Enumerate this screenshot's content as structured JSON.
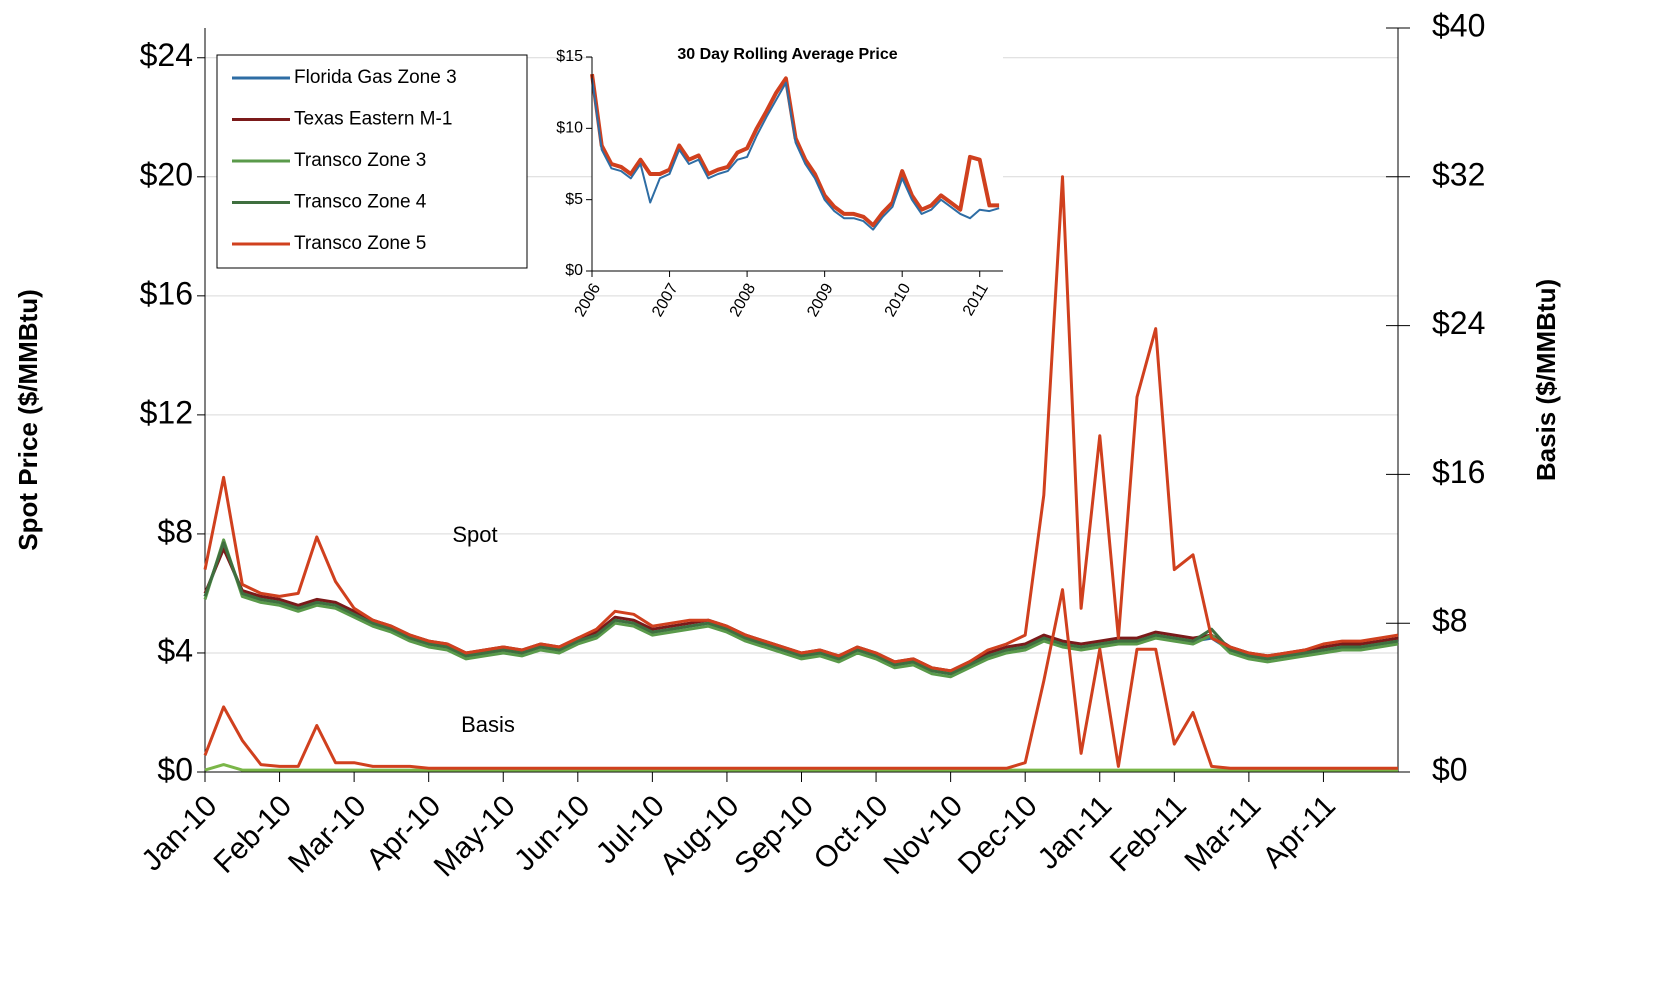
{
  "chart_data": [
    {
      "type": "line",
      "y_label": "Spot Price ($/MMBtu)",
      "y2_label": "Basis ($/MMBtu)",
      "annotations": [
        "Spot",
        "Basis"
      ],
      "legend": "upper left",
      "grid": true,
      "x": [
        0,
        0.25,
        0.5,
        0.75,
        1,
        1.25,
        1.5,
        1.75,
        2,
        2.25,
        2.5,
        2.75,
        3,
        3.25,
        3.5,
        3.75,
        4,
        4.25,
        4.5,
        4.75,
        5,
        5.25,
        5.5,
        5.75,
        6,
        6.25,
        6.5,
        6.75,
        7,
        7.25,
        7.5,
        7.75,
        8,
        8.25,
        8.5,
        8.75,
        9,
        9.25,
        9.5,
        9.75,
        10,
        10.25,
        10.5,
        10.75,
        11,
        11.25,
        11.5,
        11.75,
        12,
        12.25,
        12.5,
        12.75,
        13,
        13.25,
        13.5,
        13.75,
        14,
        14.25,
        14.5,
        14.75,
        15,
        15.25,
        15.5,
        15.75,
        16
      ],
      "xlim": [
        0,
        16
      ],
      "xticks": [
        {
          "value": 0,
          "label": "Jan-10"
        },
        {
          "value": 1,
          "label": "Feb-10"
        },
        {
          "value": 2,
          "label": "Mar-10"
        },
        {
          "value": 3,
          "label": "Apr-10"
        },
        {
          "value": 4,
          "label": "May-10"
        },
        {
          "value": 5,
          "label": "Jun-10"
        },
        {
          "value": 6,
          "label": "Jul-10"
        },
        {
          "value": 7,
          "label": "Aug-10"
        },
        {
          "value": 8,
          "label": "Sep-10"
        },
        {
          "value": 9,
          "label": "Oct-10"
        },
        {
          "value": 10,
          "label": "Nov-10"
        },
        {
          "value": 11,
          "label": "Dec-10"
        },
        {
          "value": 12,
          "label": "Jan-11"
        },
        {
          "value": 13,
          "label": "Feb-11"
        },
        {
          "value": 14,
          "label": "Mar-11"
        },
        {
          "value": 15,
          "label": "Apr-11"
        }
      ],
      "ylim": [
        0,
        25
      ],
      "yticks": [
        {
          "value": 0,
          "label": "$0"
        },
        {
          "value": 4,
          "label": "$4"
        },
        {
          "value": 8,
          "label": "$8"
        },
        {
          "value": 12,
          "label": "$12"
        },
        {
          "value": 16,
          "label": "$16"
        },
        {
          "value": 20,
          "label": "$20"
        },
        {
          "value": 24,
          "label": "$24"
        }
      ],
      "y2lim": [
        0,
        40
      ],
      "y2ticks": [
        {
          "value": 0,
          "label": "$0"
        },
        {
          "value": 8,
          "label": "$8"
        },
        {
          "value": 16,
          "label": "$16"
        },
        {
          "value": 24,
          "label": "$24"
        },
        {
          "value": 32,
          "label": "$32"
        },
        {
          "value": 40,
          "label": "$40"
        }
      ],
      "series": [
        {
          "name": "Florida Gas Zone 3",
          "color": "#2e6da4",
          "values": [
            5.9,
            7.6,
            6.0,
            5.8,
            5.7,
            5.5,
            5.7,
            5.6,
            5.3,
            5.0,
            4.8,
            4.5,
            4.3,
            4.2,
            3.9,
            4.0,
            4.1,
            4.0,
            4.2,
            4.1,
            4.4,
            4.6,
            5.1,
            5.0,
            4.7,
            4.8,
            4.9,
            5.0,
            4.8,
            4.5,
            4.3,
            4.1,
            3.9,
            4.0,
            3.8,
            4.1,
            3.9,
            3.6,
            3.7,
            3.4,
            3.3,
            3.6,
            3.9,
            4.1,
            4.2,
            4.5,
            4.3,
            4.2,
            4.3,
            4.4,
            4.4,
            4.6,
            4.5,
            4.4,
            4.5,
            4.1,
            3.9,
            3.8,
            3.9,
            4.0,
            4.1,
            4.2,
            4.2,
            4.3,
            4.4
          ]
        },
        {
          "name": "Texas Eastern M-1",
          "color": "#7b1a1a",
          "values": [
            6.0,
            7.5,
            6.1,
            5.9,
            5.8,
            5.6,
            5.8,
            5.7,
            5.4,
            5.1,
            4.9,
            4.6,
            4.4,
            4.3,
            4.0,
            4.1,
            4.2,
            4.1,
            4.3,
            4.2,
            4.5,
            4.7,
            5.2,
            5.1,
            4.8,
            4.9,
            5.0,
            5.1,
            4.9,
            4.6,
            4.4,
            4.2,
            4.0,
            4.1,
            3.9,
            4.2,
            4.0,
            3.7,
            3.8,
            3.5,
            3.4,
            3.7,
            4.0,
            4.2,
            4.3,
            4.6,
            4.4,
            4.3,
            4.4,
            4.5,
            4.5,
            4.7,
            4.6,
            4.5,
            4.6,
            4.2,
            4.0,
            3.9,
            4.0,
            4.1,
            4.2,
            4.3,
            4.3,
            4.4,
            4.5
          ]
        },
        {
          "name": "Transco Zone 3",
          "color": "#5a9a4a",
          "values": [
            5.8,
            7.8,
            5.9,
            5.7,
            5.6,
            5.4,
            5.6,
            5.5,
            5.2,
            4.9,
            4.7,
            4.4,
            4.2,
            4.1,
            3.8,
            3.9,
            4.0,
            3.9,
            4.1,
            4.0,
            4.3,
            4.5,
            5.0,
            4.9,
            4.6,
            4.7,
            4.8,
            4.9,
            4.7,
            4.4,
            4.2,
            4.0,
            3.8,
            3.9,
            3.7,
            4.0,
            3.8,
            3.5,
            3.6,
            3.3,
            3.2,
            3.5,
            3.8,
            4.0,
            4.1,
            4.4,
            4.2,
            4.1,
            4.2,
            4.3,
            4.3,
            4.5,
            4.4,
            4.3,
            4.6,
            4.0,
            3.8,
            3.7,
            3.8,
            3.9,
            4.0,
            4.1,
            4.1,
            4.2,
            4.3
          ]
        },
        {
          "name": "Transco Zone 4",
          "color": "#3f6f3f",
          "values": [
            5.9,
            7.7,
            6.0,
            5.8,
            5.7,
            5.5,
            5.7,
            5.6,
            5.3,
            5.0,
            4.8,
            4.5,
            4.3,
            4.2,
            3.9,
            4.0,
            4.1,
            4.0,
            4.2,
            4.1,
            4.4,
            4.6,
            5.1,
            5.0,
            4.7,
            4.8,
            4.9,
            5.0,
            4.8,
            4.5,
            4.3,
            4.1,
            3.9,
            4.0,
            3.8,
            4.1,
            3.9,
            3.6,
            3.7,
            3.4,
            3.3,
            3.6,
            3.9,
            4.1,
            4.2,
            4.5,
            4.3,
            4.2,
            4.3,
            4.4,
            4.4,
            4.6,
            4.5,
            4.4,
            4.8,
            4.1,
            3.9,
            3.8,
            3.9,
            4.0,
            4.1,
            4.2,
            4.2,
            4.3,
            4.4
          ]
        },
        {
          "name": "Transco Zone 5",
          "color": "#d0401e",
          "values": [
            6.8,
            9.9,
            6.3,
            6.0,
            5.9,
            6.0,
            7.9,
            6.4,
            5.5,
            5.1,
            4.9,
            4.6,
            4.4,
            4.3,
            4.0,
            4.1,
            4.2,
            4.1,
            4.3,
            4.2,
            4.5,
            4.8,
            5.4,
            5.3,
            4.9,
            5.0,
            5.1,
            5.1,
            4.9,
            4.6,
            4.4,
            4.2,
            4.0,
            4.1,
            3.9,
            4.2,
            4.0,
            3.7,
            3.8,
            3.5,
            3.4,
            3.7,
            4.1,
            4.3,
            4.6,
            9.3,
            20.0,
            5.5,
            11.3,
            4.5,
            12.6,
            14.9,
            6.8,
            7.3,
            4.5,
            4.2,
            4.0,
            3.9,
            4.0,
            4.1,
            4.3,
            4.4,
            4.4,
            4.5,
            4.6
          ]
        }
      ],
      "basis_series": [
        {
          "axis": "y2",
          "color": "#7ab648",
          "values": [
            0.1,
            0.4,
            0.1,
            0.1,
            0.1,
            0.1,
            0.1,
            0.1,
            0.1,
            0.1,
            0.1,
            0.1,
            0.1,
            0.1,
            0.1,
            0.1,
            0.1,
            0.1,
            0.1,
            0.1,
            0.1,
            0.1,
            0.1,
            0.1,
            0.1,
            0.1,
            0.1,
            0.1,
            0.1,
            0.1,
            0.1,
            0.1,
            0.1,
            0.1,
            0.1,
            0.1,
            0.1,
            0.1,
            0.1,
            0.1,
            0.1,
            0.1,
            0.1,
            0.1,
            0.1,
            0.1,
            0.1,
            0.1,
            0.1,
            0.1,
            0.1,
            0.1,
            0.1,
            0.1,
            0.1,
            0.1,
            0.1,
            0.1,
            0.1,
            0.1,
            0.1,
            0.1,
            0.1,
            0.1,
            0.1
          ]
        },
        {
          "axis": "y2",
          "color": "#d0401e",
          "values": [
            0.9,
            3.5,
            1.7,
            0.4,
            0.3,
            0.3,
            2.5,
            0.5,
            0.5,
            0.3,
            0.3,
            0.3,
            0.2,
            0.2,
            0.2,
            0.2,
            0.2,
            0.2,
            0.2,
            0.2,
            0.2,
            0.2,
            0.2,
            0.2,
            0.2,
            0.2,
            0.2,
            0.2,
            0.2,
            0.2,
            0.2,
            0.2,
            0.2,
            0.2,
            0.2,
            0.2,
            0.2,
            0.2,
            0.2,
            0.2,
            0.2,
            0.2,
            0.2,
            0.2,
            0.5,
            4.9,
            9.8,
            1.0,
            6.6,
            0.3,
            6.6,
            6.6,
            1.5,
            3.2,
            0.3,
            0.2,
            0.2,
            0.2,
            0.2,
            0.2,
            0.2,
            0.2,
            0.2,
            0.2,
            0.2
          ]
        }
      ]
    },
    {
      "type": "line",
      "title": "30 Day Rolling Average Price",
      "x": [
        2006,
        2006.125,
        2006.25,
        2006.375,
        2006.5,
        2006.625,
        2006.75,
        2006.875,
        2007,
        2007.125,
        2007.25,
        2007.375,
        2007.5,
        2007.625,
        2007.75,
        2007.875,
        2008,
        2008.125,
        2008.25,
        2008.375,
        2008.5,
        2008.625,
        2008.75,
        2008.875,
        2009,
        2009.125,
        2009.25,
        2009.375,
        2009.5,
        2009.625,
        2009.75,
        2009.875,
        2010,
        2010.125,
        2010.25,
        2010.375,
        2010.5,
        2010.625,
        2010.75,
        2010.875,
        2011,
        2011.125,
        2011.25
      ],
      "xlim": [
        2006,
        2011.3
      ],
      "xticks": [
        2006,
        2007,
        2008,
        2009,
        2010,
        2011
      ],
      "ylim": [
        0,
        15
      ],
      "yticks": [
        {
          "value": 0,
          "label": "$0"
        },
        {
          "value": 5,
          "label": "$5"
        },
        {
          "value": 10,
          "label": "$10"
        },
        {
          "value": 15,
          "label": "$15"
        }
      ],
      "series": [
        {
          "color": "#d0401e",
          "values": [
            13.8,
            8.8,
            7.5,
            7.3,
            6.8,
            7.8,
            6.8,
            6.8,
            7.1,
            8.8,
            7.8,
            8.1,
            6.8,
            7.1,
            7.3,
            8.3,
            8.6,
            10.0,
            11.2,
            12.5,
            13.5,
            9.3,
            7.8,
            6.8,
            5.3,
            4.5,
            4.0,
            4.0,
            3.8,
            3.2,
            4.1,
            4.8,
            7.0,
            5.3,
            4.3,
            4.6,
            5.3,
            4.8,
            4.3,
            8.0,
            7.8,
            4.6,
            4.6
          ]
        },
        {
          "color": "#2e6da4",
          "values": [
            13.5,
            8.5,
            7.2,
            7.0,
            6.5,
            7.5,
            4.8,
            6.5,
            6.8,
            8.5,
            7.5,
            7.8,
            6.5,
            6.8,
            7.0,
            7.8,
            8.0,
            9.5,
            10.8,
            12.0,
            13.2,
            9.0,
            7.5,
            6.5,
            5.0,
            4.2,
            3.7,
            3.7,
            3.5,
            2.9,
            3.8,
            4.5,
            6.5,
            5.0,
            4.0,
            4.3,
            5.0,
            4.5,
            4.0,
            3.7,
            4.3,
            4.2,
            4.4
          ]
        }
      ]
    }
  ]
}
